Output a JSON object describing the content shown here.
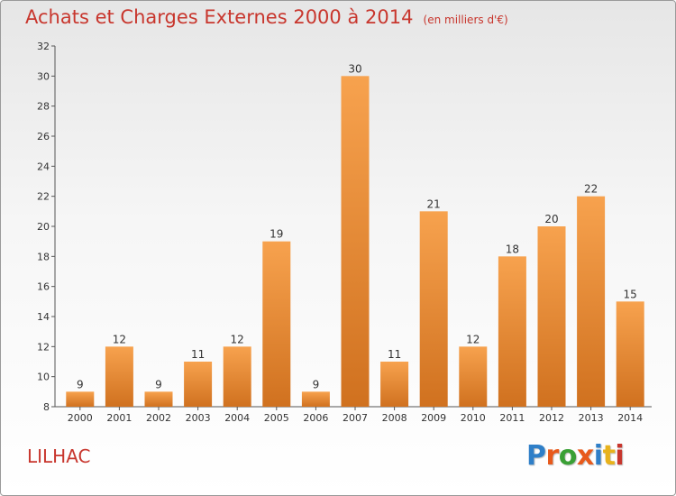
{
  "title": "Achats et Charges Externes 2000 à 2014",
  "unit": "(en milliers d'€)",
  "commune": "LILHAC",
  "logo": {
    "text": "Proxiti",
    "colors": [
      "#2f7fc8",
      "#e85a1c",
      "#3aa035",
      "#e85a1c",
      "#2f7fc8",
      "#e8b21c",
      "#c8362d"
    ]
  },
  "colors": {
    "bar_light": "#f7a24e",
    "bar_dark": "#d0711f",
    "text_accent": "#c8362d"
  },
  "chart_data": {
    "type": "bar",
    "categories": [
      "2000",
      "2001",
      "2002",
      "2003",
      "2004",
      "2005",
      "2006",
      "2007",
      "2008",
      "2009",
      "2010",
      "2011",
      "2012",
      "2013",
      "2014"
    ],
    "values": [
      9,
      12,
      9,
      11,
      12,
      19,
      9,
      30,
      11,
      21,
      12,
      18,
      20,
      22,
      15
    ],
    "ylim": [
      8,
      32
    ],
    "yticks": [
      8,
      10,
      12,
      14,
      16,
      18,
      20,
      22,
      24,
      26,
      28,
      30,
      32
    ],
    "grid": false,
    "legend": "none"
  }
}
